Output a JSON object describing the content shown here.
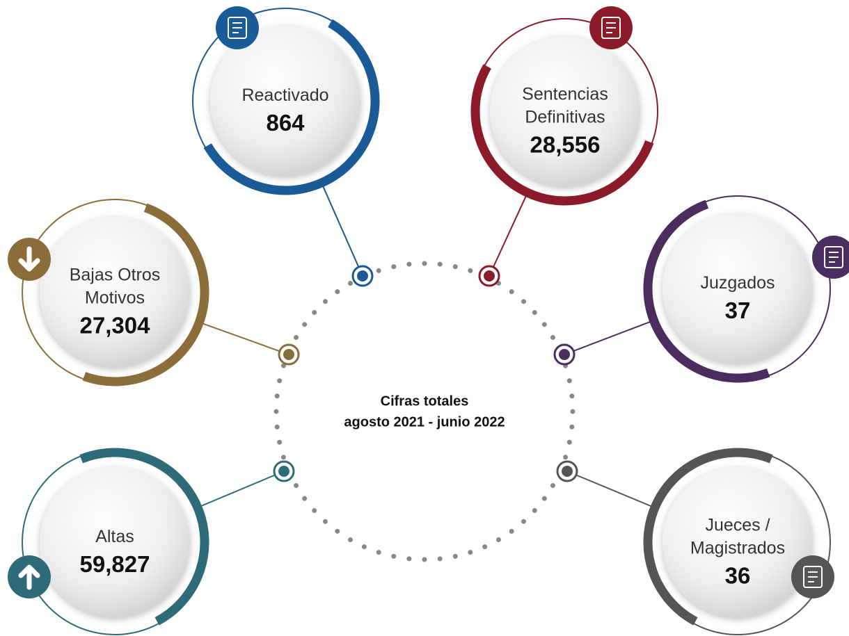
{
  "center": {
    "title": "Cifras totales",
    "subtitle": "agosto 2021 - junio 2022"
  },
  "nodes": [
    {
      "label": [
        "Reactivado"
      ],
      "value": "864"
    },
    {
      "label": [
        "Sentencias",
        "Definitivas"
      ],
      "value": "28,556"
    },
    {
      "label": [
        "Bajas Otros",
        "Motivos"
      ],
      "value": "27,304"
    },
    {
      "label": [
        "Juzgados"
      ],
      "value": "37"
    },
    {
      "label": [
        "Altas"
      ],
      "value": "59,827"
    },
    {
      "label": [
        "Jueces /",
        "Magistrados"
      ],
      "value": "36"
    }
  ]
}
